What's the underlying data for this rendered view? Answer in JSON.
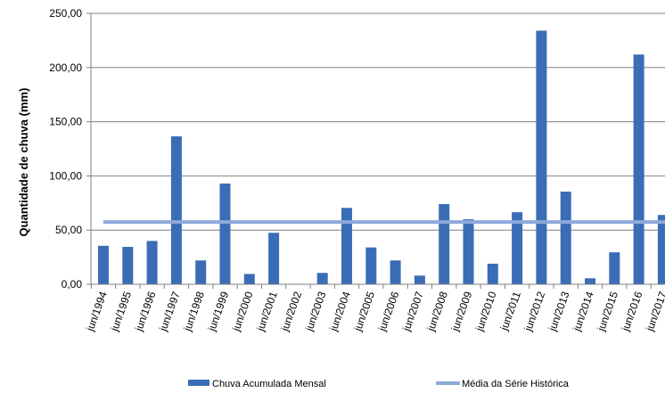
{
  "chart_data": {
    "type": "bar",
    "title": "",
    "xlabel": "",
    "ylabel": "Quantidade de chuva (mm)",
    "ylim": [
      0,
      250
    ],
    "yticks": [
      "0,00",
      "50,00",
      "100,00",
      "150,00",
      "200,00",
      "250,00"
    ],
    "grid": true,
    "legend_position": "bottom",
    "categories": [
      "jun/1994",
      "jun/1995",
      "jun/1996",
      "jun/1997",
      "jun/1998",
      "jun/1999",
      "jun/2000",
      "jun/2001",
      "jun/2002",
      "jun/2003",
      "jun/2004",
      "jun/2005",
      "jun/2006",
      "jun/2007",
      "jun/2008",
      "jun/2009",
      "jun/2010",
      "jun/2011",
      "jun/2012",
      "jun/2013",
      "jun/2014",
      "jun/2015",
      "jun/2016",
      "jun/2017"
    ],
    "series": [
      {
        "name": "Chuva Acumulada Mensal",
        "kind": "bar",
        "color": "#3A6DB5",
        "values": [
          35.5,
          34.5,
          40,
          136.5,
          22,
          93,
          9.5,
          47.5,
          0,
          10.5,
          70.5,
          34,
          22,
          8,
          74,
          60,
          19,
          66.5,
          234,
          85.5,
          5.5,
          29.5,
          212,
          64
        ]
      },
      {
        "name": "Média da Série Histórica",
        "kind": "line",
        "color": "#8EA9DB",
        "value": 57.5
      }
    ]
  }
}
